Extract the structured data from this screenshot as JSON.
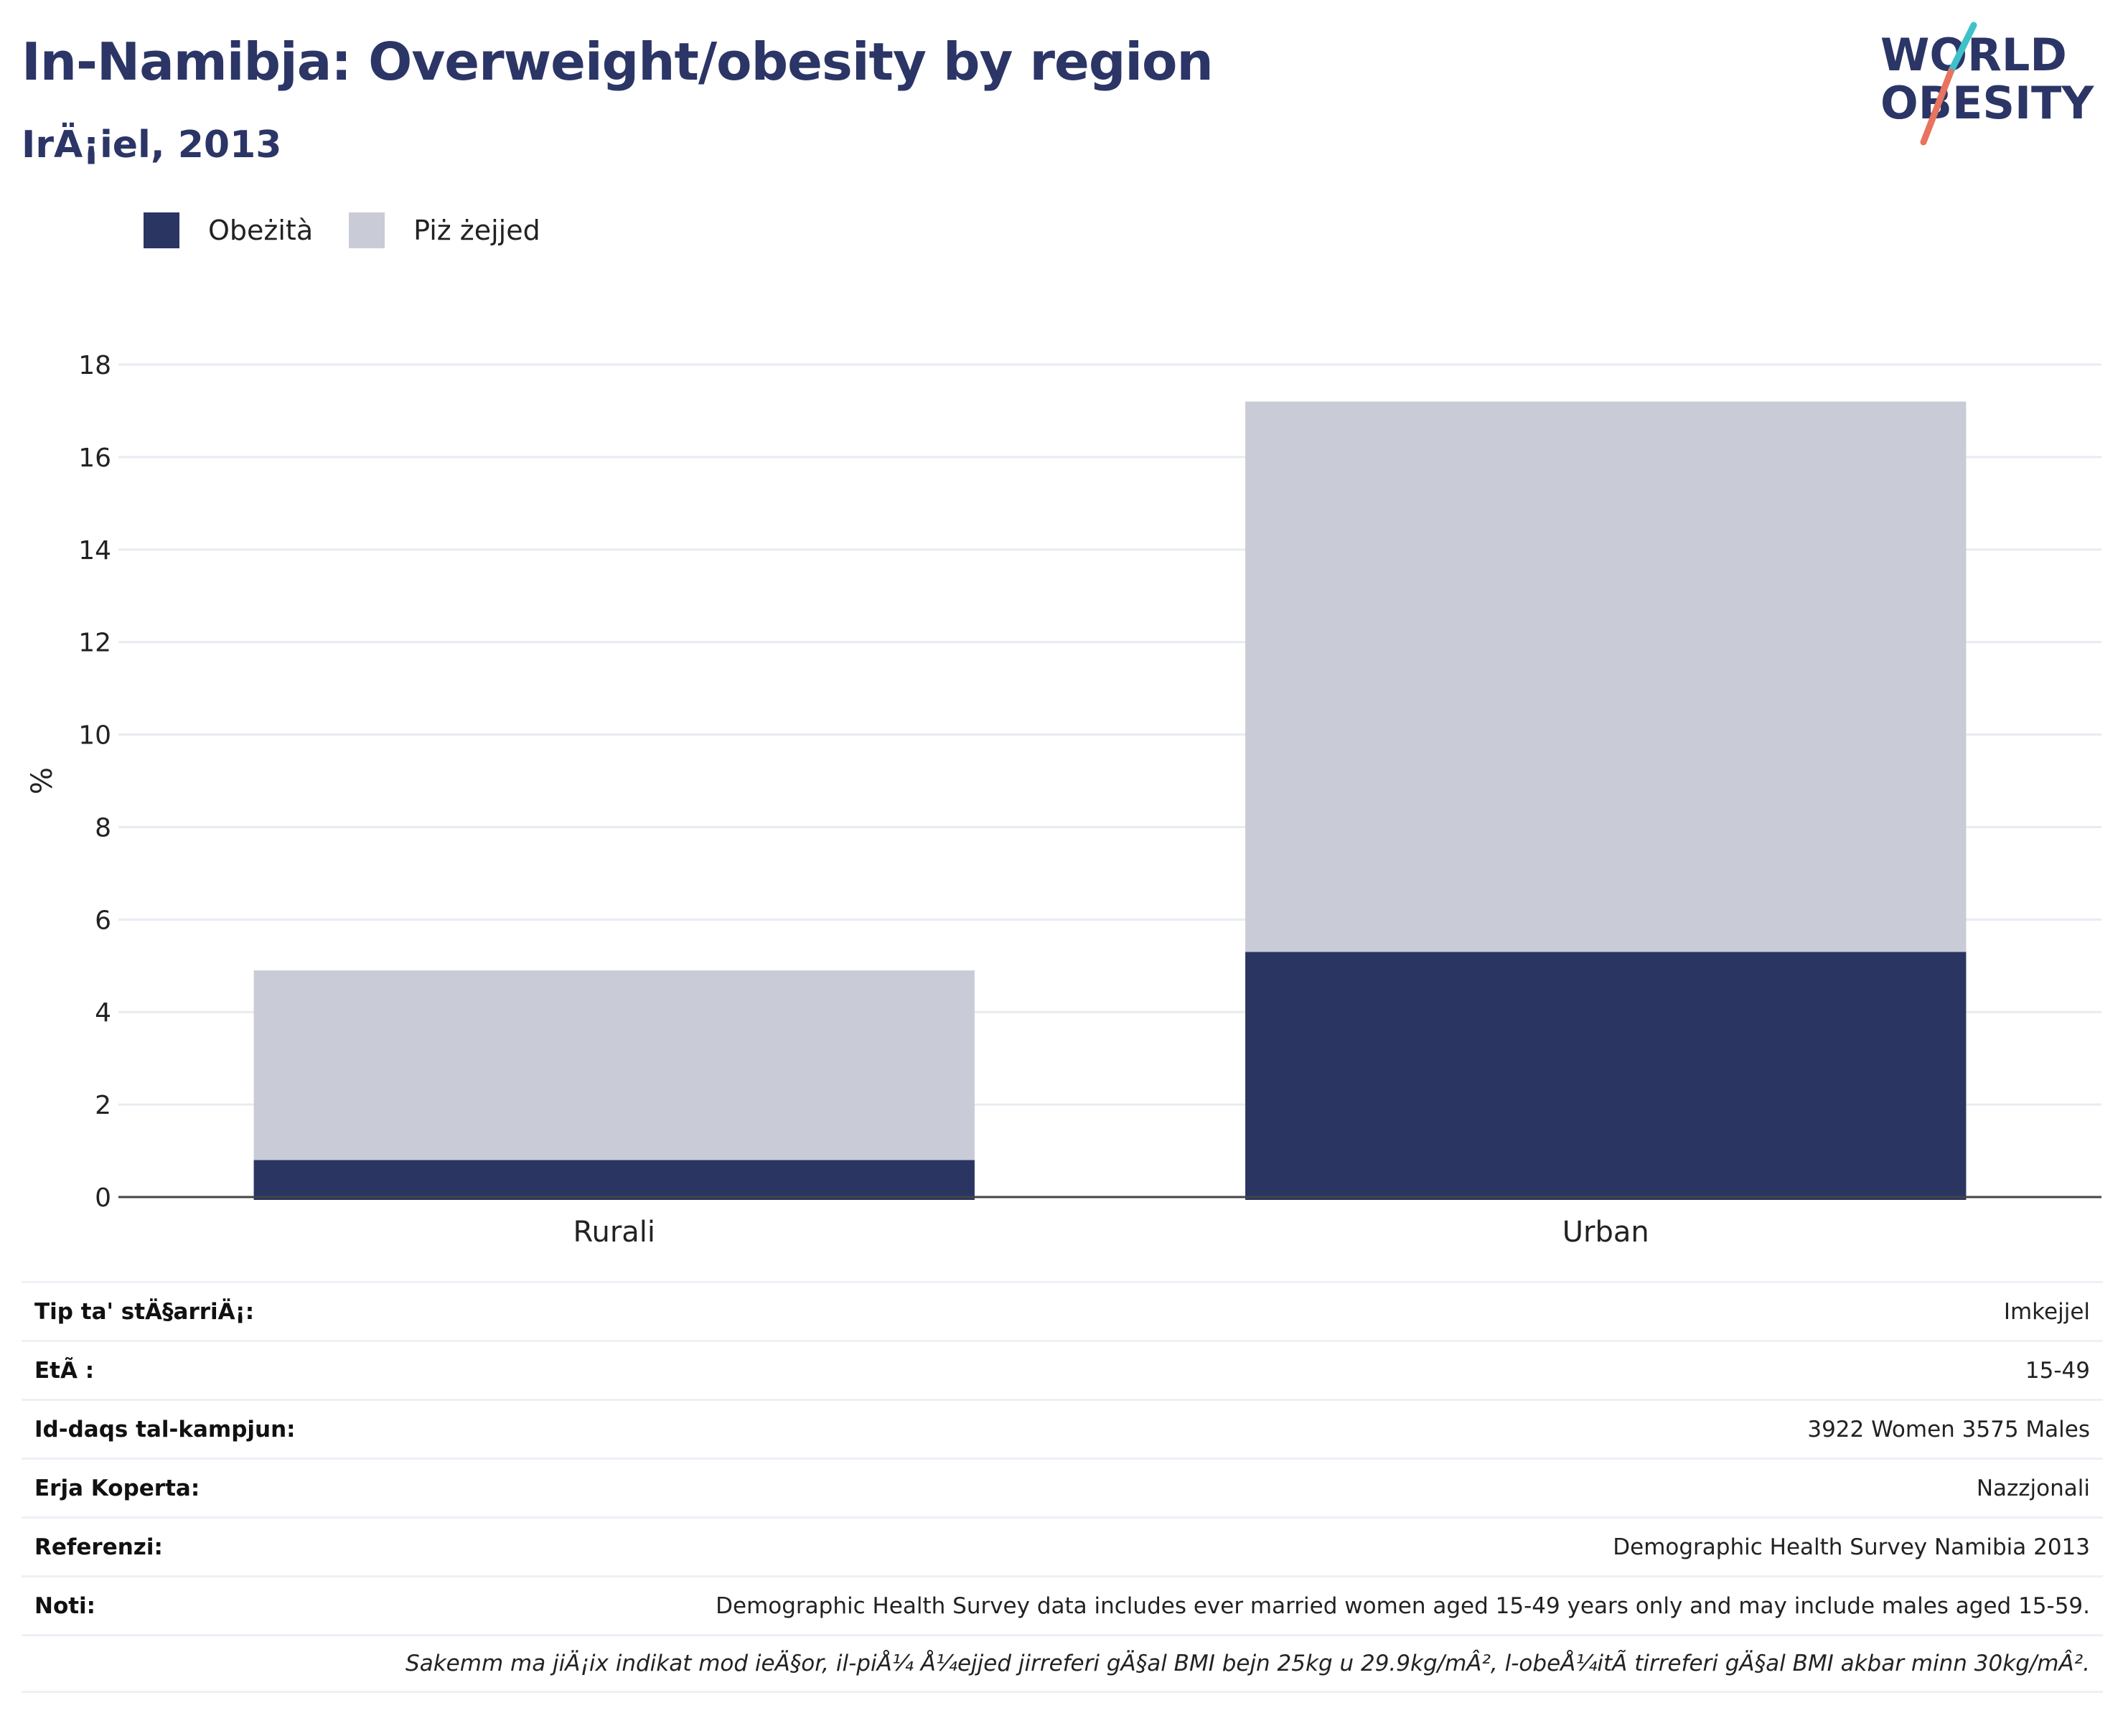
{
  "header": {
    "title": "In-Namibja: Overweight/obesity by region",
    "subtitle": "IrÄ¡iel, 2013"
  },
  "logo": {
    "line1": "WORLD",
    "line2": "OBESITY",
    "text_color": "#2b3566",
    "slash_teal": "#3ec1c9",
    "slash_coral": "#e8735f"
  },
  "colors": {
    "obesity": "#2a3562",
    "overweight": "#c9ccd7",
    "grid": "#e9ebf2",
    "axis": "#444444"
  },
  "legend": [
    {
      "label": "Obeżità",
      "color": "#2a3562"
    },
    {
      "label": "Piż żejjed",
      "color": "#c9ccd7"
    }
  ],
  "chart_data": {
    "type": "bar",
    "stacked": true,
    "categories": [
      "Rurali",
      "Urban"
    ],
    "series": [
      {
        "name": "Obeżità",
        "values": [
          0.8,
          5.3
        ]
      },
      {
        "name": "Piż żejjed",
        "values": [
          4.1,
          11.9
        ]
      }
    ],
    "ylabel": "%",
    "ylim": [
      0,
      18
    ],
    "yticks": [
      0,
      2,
      4,
      6,
      8,
      10,
      12,
      14,
      16,
      18
    ],
    "grid": true,
    "legend_position": "top-left"
  },
  "meta": {
    "rows": [
      {
        "label": "Tip ta' stÄ§arriÄ¡:",
        "value": "Imkejjel"
      },
      {
        "label": "EtÃ :",
        "value": "15-49"
      },
      {
        "label": "Id-daqs tal-kampjun:",
        "value": "3922 Women 3575 Males"
      },
      {
        "label": "Erja Koperta:",
        "value": "Nazzjonali"
      },
      {
        "label": "Referenzi:",
        "value": "Demographic Health Survey Namibia 2013"
      },
      {
        "label": "Noti:",
        "value": "Demographic Health Survey data includes ever married women aged 15-49 years only and may include males aged 15-59."
      }
    ],
    "footnote": "Sakemm ma jiÄ¡ix indikat mod ieÄ§or, il-piÅ¼ Å¼ejjed jirreferi gÄ§al BMI bejn 25kg u 29.9kg/mÂ², l-obeÅ¼itÃ  tirreferi gÄ§al BMI akbar minn 30kg/mÂ²."
  }
}
